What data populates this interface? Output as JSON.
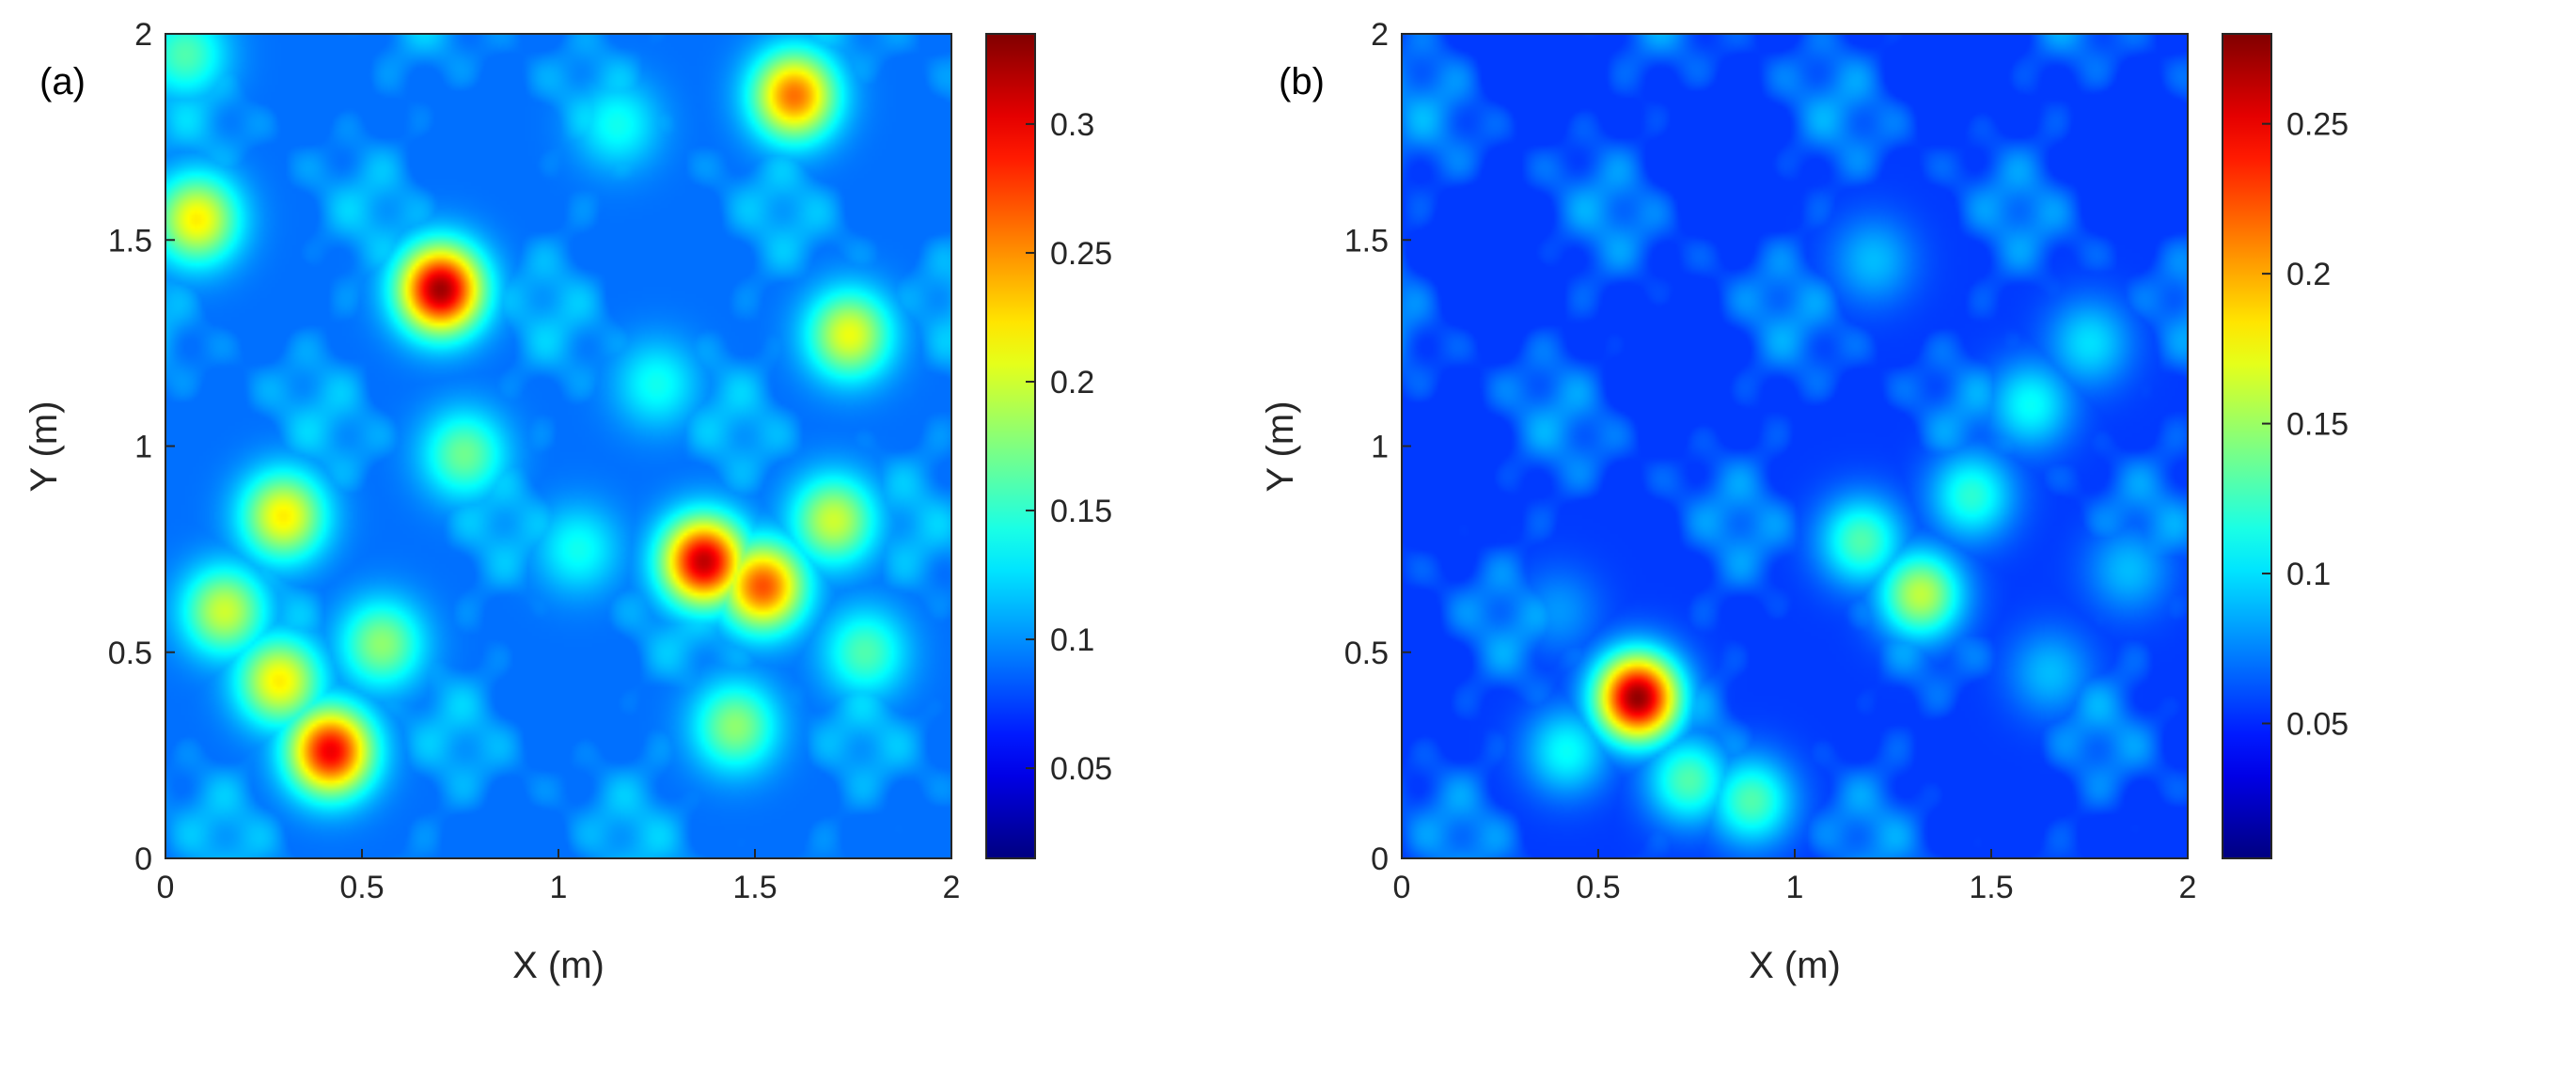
{
  "chart_data": [
    {
      "type": "heatmap",
      "panel_label": "(a)",
      "title": "",
      "xlabel": "X (m)",
      "ylabel": "Y (m)",
      "xlim": [
        0,
        2
      ],
      "ylim": [
        0,
        2
      ],
      "xticks": [
        "0",
        "0.5",
        "1",
        "1.5",
        "2"
      ],
      "yticks": [
        "0",
        "0.5",
        "1",
        "1.5",
        "2"
      ],
      "colormap": "jet",
      "clim": [
        0.015,
        0.335
      ],
      "colorbar_ticks": [
        "0.05",
        "0.1",
        "0.15",
        "0.2",
        "0.25",
        "0.3"
      ],
      "background_level": 0.09,
      "peaks": [
        {
          "x": 0.7,
          "y": 1.38,
          "value": 0.325
        },
        {
          "x": 1.37,
          "y": 0.72,
          "value": 0.315
        },
        {
          "x": 1.52,
          "y": 0.66,
          "value": 0.27
        },
        {
          "x": 0.42,
          "y": 0.26,
          "value": 0.3
        },
        {
          "x": 1.6,
          "y": 1.85,
          "value": 0.26
        },
        {
          "x": 0.08,
          "y": 1.55,
          "value": 0.22
        },
        {
          "x": 1.74,
          "y": 1.27,
          "value": 0.21
        },
        {
          "x": 0.3,
          "y": 0.83,
          "value": 0.22
        },
        {
          "x": 0.15,
          "y": 0.6,
          "value": 0.2
        },
        {
          "x": 0.29,
          "y": 0.43,
          "value": 0.22
        },
        {
          "x": 1.7,
          "y": 0.82,
          "value": 0.2
        },
        {
          "x": 0.76,
          "y": 0.98,
          "value": 0.17
        },
        {
          "x": 1.45,
          "y": 0.32,
          "value": 0.18
        },
        {
          "x": 1.78,
          "y": 0.5,
          "value": 0.16
        },
        {
          "x": 0.55,
          "y": 0.52,
          "value": 0.18
        },
        {
          "x": 1.05,
          "y": 0.75,
          "value": 0.14
        },
        {
          "x": 0.05,
          "y": 1.95,
          "value": 0.16
        },
        {
          "x": 1.25,
          "y": 1.15,
          "value": 0.14
        },
        {
          "x": 1.15,
          "y": 1.78,
          "value": 0.14
        }
      ]
    },
    {
      "type": "heatmap",
      "panel_label": "(b)",
      "title": "",
      "xlabel": "X (m)",
      "ylabel": "Y (m)",
      "xlim": [
        0,
        2
      ],
      "ylim": [
        0,
        2
      ],
      "xticks": [
        "0",
        "0.5",
        "1",
        "1.5",
        "2"
      ],
      "yticks": [
        "0",
        "0.5",
        "1",
        "1.5",
        "2"
      ],
      "colormap": "jet",
      "clim": [
        0.005,
        0.28
      ],
      "colorbar_ticks": [
        "0.05",
        "0.1",
        "0.15",
        "0.2",
        "0.25"
      ],
      "background_level": 0.055,
      "peaks": [
        {
          "x": 0.6,
          "y": 0.39,
          "value": 0.275
        },
        {
          "x": 1.32,
          "y": 0.64,
          "value": 0.16
        },
        {
          "x": 1.17,
          "y": 0.77,
          "value": 0.13
        },
        {
          "x": 1.45,
          "y": 0.88,
          "value": 0.12
        },
        {
          "x": 0.73,
          "y": 0.19,
          "value": 0.13
        },
        {
          "x": 0.89,
          "y": 0.14,
          "value": 0.13
        },
        {
          "x": 0.42,
          "y": 0.26,
          "value": 0.11
        },
        {
          "x": 1.6,
          "y": 1.1,
          "value": 0.11
        },
        {
          "x": 1.75,
          "y": 1.25,
          "value": 0.1
        },
        {
          "x": 1.2,
          "y": 1.45,
          "value": 0.09
        },
        {
          "x": 0.4,
          "y": 0.6,
          "value": 0.08
        },
        {
          "x": 1.85,
          "y": 0.7,
          "value": 0.09
        },
        {
          "x": 1.65,
          "y": 0.45,
          "value": 0.09
        }
      ]
    }
  ]
}
